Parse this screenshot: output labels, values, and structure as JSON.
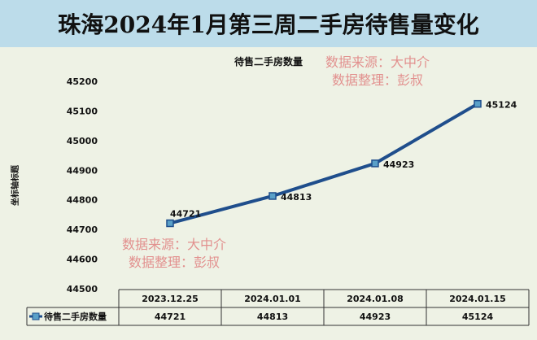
{
  "title": "珠海2024年1月第三周二手房待售量变化",
  "watermark": {
    "line1": "数据来源：大中介",
    "line2": "数据整理：彭叔"
  },
  "chart_data": {
    "type": "line",
    "title": "待售二手房数量",
    "ylabel": "坐标轴标题",
    "categories": [
      "2023.12.25",
      "2024.01.01",
      "2024.01.08",
      "2024.01.15"
    ],
    "series": [
      {
        "name": "待售二手房数量",
        "values": [
          44721,
          44813,
          44923,
          45124
        ],
        "color": "#1f4e8c"
      }
    ],
    "ylim": [
      44500,
      45200
    ],
    "yticks": [
      44500,
      44600,
      44700,
      44800,
      44900,
      45000,
      45100,
      45200
    ],
    "data_table": true,
    "grid": false
  }
}
